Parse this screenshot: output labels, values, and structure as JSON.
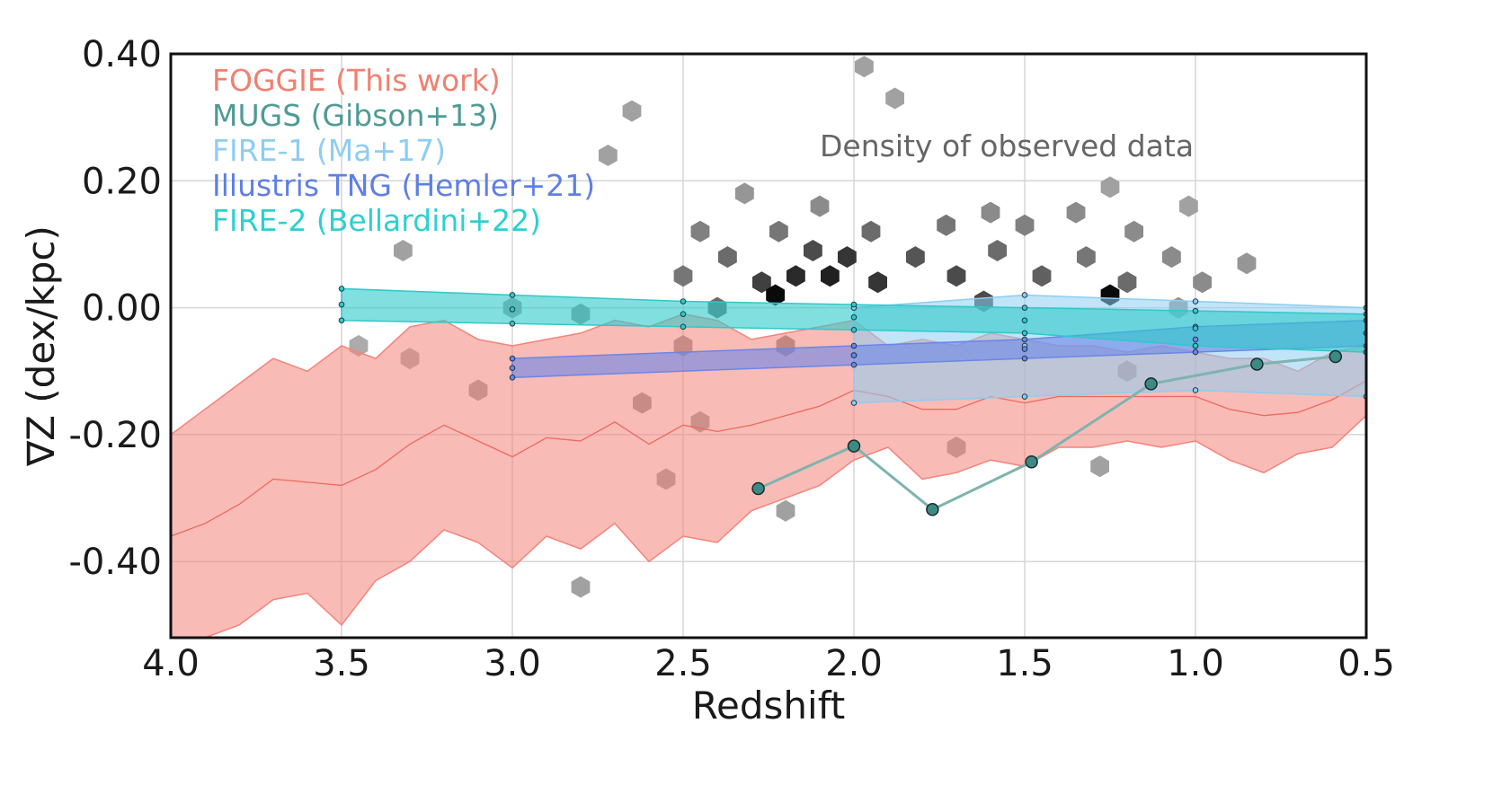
{
  "chart_data": {
    "type": "line",
    "xlabel": "Redshift",
    "ylabel": "∇Z (dex/kpc)",
    "xlim": [
      4.0,
      0.5
    ],
    "ylim": [
      -0.52,
      0.4
    ],
    "x_ticks": [
      4.0,
      3.5,
      3.0,
      2.5,
      2.0,
      1.5,
      1.0,
      0.5
    ],
    "x_tick_labels": [
      "4.0",
      "3.5",
      "3.0",
      "2.5",
      "2.0",
      "1.5",
      "1.0",
      "0.5"
    ],
    "y_ticks": [
      0.4,
      0.2,
      0.0,
      -0.2,
      -0.4
    ],
    "y_tick_labels": [
      "0.40",
      "0.20",
      "0.00",
      "-0.20",
      "-0.40"
    ],
    "grid": true,
    "annotation": "Density of observed data",
    "legend": [
      {
        "label": "FOGGIE (This work)",
        "color": "#f08070"
      },
      {
        "label": "MUGS (Gibson+13)",
        "color": "#4f9a96"
      },
      {
        "label": "FIRE-1 (Ma+17)",
        "color": "#8ecdf2"
      },
      {
        "label": "Illustris TNG (Hemler+21)",
        "color": "#5f7fe6"
      },
      {
        "label": "FIRE-2 (Bellardini+22)",
        "color": "#2fcfcf"
      }
    ],
    "series": [
      {
        "name": "FOGGIE (This work)",
        "kind": "band",
        "color": "#f4837a",
        "x": [
          4.0,
          3.9,
          3.8,
          3.7,
          3.6,
          3.5,
          3.4,
          3.3,
          3.2,
          3.1,
          3.0,
          2.9,
          2.8,
          2.7,
          2.6,
          2.5,
          2.4,
          2.3,
          2.2,
          2.1,
          2.0,
          1.9,
          1.8,
          1.7,
          1.6,
          1.5,
          1.4,
          1.3,
          1.2,
          1.1,
          1.0,
          0.9,
          0.8,
          0.7,
          0.6,
          0.5
        ],
        "upper": [
          -0.2,
          -0.16,
          -0.12,
          -0.08,
          -0.1,
          -0.06,
          -0.08,
          -0.03,
          -0.02,
          -0.05,
          -0.06,
          -0.05,
          -0.04,
          -0.02,
          -0.03,
          -0.01,
          -0.02,
          -0.05,
          -0.04,
          -0.03,
          -0.02,
          -0.06,
          -0.05,
          -0.06,
          -0.04,
          -0.05,
          -0.06,
          -0.06,
          -0.07,
          -0.06,
          -0.07,
          -0.08,
          -0.08,
          -0.1,
          -0.07,
          -0.06
        ],
        "lower": [
          -0.52,
          -0.52,
          -0.5,
          -0.46,
          -0.45,
          -0.5,
          -0.43,
          -0.4,
          -0.35,
          -0.37,
          -0.41,
          -0.36,
          -0.38,
          -0.34,
          -0.4,
          -0.36,
          -0.37,
          -0.32,
          -0.3,
          -0.28,
          -0.24,
          -0.22,
          -0.27,
          -0.26,
          -0.24,
          -0.25,
          -0.22,
          -0.22,
          -0.21,
          -0.22,
          -0.21,
          -0.24,
          -0.26,
          -0.23,
          -0.22,
          -0.17
        ]
      },
      {
        "name": "MUGS (Gibson+13)",
        "kind": "line",
        "color": "#7fb3af",
        "x": [
          2.28,
          2.0,
          1.77,
          1.48,
          1.13,
          0.82,
          0.59
        ],
        "y": [
          -0.285,
          -0.218,
          -0.318,
          -0.243,
          -0.12,
          -0.089,
          -0.077
        ]
      },
      {
        "name": "FIRE-1 (Ma+17)",
        "kind": "band",
        "color": "#8ecdf2",
        "x": [
          2.0,
          1.5,
          1.0,
          0.5
        ],
        "upper": [
          0.0,
          0.02,
          0.01,
          0.0
        ],
        "lower": [
          -0.15,
          -0.14,
          -0.13,
          -0.14
        ]
      },
      {
        "name": "Illustris TNG (Hemler+21)",
        "kind": "band",
        "color": "#6a86e8",
        "x": [
          3.0,
          2.0,
          1.5,
          1.0,
          0.5
        ],
        "upper": [
          -0.08,
          -0.06,
          -0.05,
          -0.03,
          -0.02
        ],
        "lower": [
          -0.11,
          -0.09,
          -0.08,
          -0.07,
          -0.06
        ]
      },
      {
        "name": "FIRE-2 (Bellardini+22)",
        "kind": "band",
        "color": "#2fc9c9",
        "x": [
          3.5,
          3.0,
          2.5,
          2.0,
          1.5,
          1.0,
          0.5
        ],
        "upper": [
          0.03,
          0.02,
          0.01,
          0.005,
          0.0,
          -0.005,
          -0.01
        ],
        "lower": [
          -0.02,
          -0.025,
          -0.03,
          -0.035,
          -0.04,
          -0.06,
          -0.07
        ]
      }
    ],
    "observed_density": {
      "kind": "hexbin",
      "cmap": "Greys",
      "approx_cells": [
        {
          "x": 1.97,
          "y": 0.38,
          "d": 0.3
        },
        {
          "x": 1.88,
          "y": 0.33,
          "d": 0.3
        },
        {
          "x": 2.65,
          "y": 0.31,
          "d": 0.3
        },
        {
          "x": 2.72,
          "y": 0.24,
          "d": 0.3
        },
        {
          "x": 1.25,
          "y": 0.19,
          "d": 0.3
        },
        {
          "x": 2.32,
          "y": 0.18,
          "d": 0.35
        },
        {
          "x": 2.1,
          "y": 0.16,
          "d": 0.4
        },
        {
          "x": 1.6,
          "y": 0.15,
          "d": 0.4
        },
        {
          "x": 1.35,
          "y": 0.15,
          "d": 0.4
        },
        {
          "x": 1.02,
          "y": 0.16,
          "d": 0.3
        },
        {
          "x": 2.45,
          "y": 0.12,
          "d": 0.45
        },
        {
          "x": 2.22,
          "y": 0.12,
          "d": 0.5
        },
        {
          "x": 1.95,
          "y": 0.12,
          "d": 0.55
        },
        {
          "x": 1.73,
          "y": 0.13,
          "d": 0.5
        },
        {
          "x": 1.5,
          "y": 0.13,
          "d": 0.45
        },
        {
          "x": 1.18,
          "y": 0.12,
          "d": 0.4
        },
        {
          "x": 2.37,
          "y": 0.08,
          "d": 0.55
        },
        {
          "x": 2.12,
          "y": 0.09,
          "d": 0.7
        },
        {
          "x": 2.02,
          "y": 0.08,
          "d": 0.8
        },
        {
          "x": 1.82,
          "y": 0.08,
          "d": 0.65
        },
        {
          "x": 1.58,
          "y": 0.09,
          "d": 0.55
        },
        {
          "x": 1.32,
          "y": 0.08,
          "d": 0.5
        },
        {
          "x": 1.07,
          "y": 0.08,
          "d": 0.4
        },
        {
          "x": 0.85,
          "y": 0.07,
          "d": 0.35
        },
        {
          "x": 2.5,
          "y": 0.05,
          "d": 0.5
        },
        {
          "x": 2.27,
          "y": 0.04,
          "d": 0.75
        },
        {
          "x": 2.17,
          "y": 0.05,
          "d": 0.85
        },
        {
          "x": 2.07,
          "y": 0.05,
          "d": 0.9
        },
        {
          "x": 1.93,
          "y": 0.04,
          "d": 0.8
        },
        {
          "x": 1.7,
          "y": 0.05,
          "d": 0.7
        },
        {
          "x": 1.45,
          "y": 0.05,
          "d": 0.6
        },
        {
          "x": 1.2,
          "y": 0.04,
          "d": 0.55
        },
        {
          "x": 0.98,
          "y": 0.04,
          "d": 0.4
        },
        {
          "x": 2.23,
          "y": 0.02,
          "d": 1.0
        },
        {
          "x": 1.25,
          "y": 0.02,
          "d": 1.0
        },
        {
          "x": 1.62,
          "y": 0.01,
          "d": 0.7
        },
        {
          "x": 2.4,
          "y": 0.0,
          "d": 0.55
        },
        {
          "x": 2.8,
          "y": -0.01,
          "d": 0.35
        },
        {
          "x": 3.0,
          "y": 0.0,
          "d": 0.3
        },
        {
          "x": 1.05,
          "y": 0.0,
          "d": 0.35
        },
        {
          "x": 3.32,
          "y": 0.09,
          "d": 0.3
        },
        {
          "x": 2.5,
          "y": -0.06,
          "d": 0.35
        },
        {
          "x": 2.2,
          "y": -0.06,
          "d": 0.4
        },
        {
          "x": 3.45,
          "y": -0.06,
          "d": 0.25
        },
        {
          "x": 3.3,
          "y": -0.08,
          "d": 0.25
        },
        {
          "x": 1.2,
          "y": -0.1,
          "d": 0.35
        },
        {
          "x": 2.62,
          "y": -0.15,
          "d": 0.35
        },
        {
          "x": 3.1,
          "y": -0.13,
          "d": 0.3
        },
        {
          "x": 2.45,
          "y": -0.18,
          "d": 0.3
        },
        {
          "x": 1.7,
          "y": -0.22,
          "d": 0.3
        },
        {
          "x": 1.28,
          "y": -0.25,
          "d": 0.3
        },
        {
          "x": 2.55,
          "y": -0.27,
          "d": 0.3
        },
        {
          "x": 2.2,
          "y": -0.32,
          "d": 0.3
        },
        {
          "x": 2.8,
          "y": -0.44,
          "d": 0.3
        }
      ]
    }
  }
}
